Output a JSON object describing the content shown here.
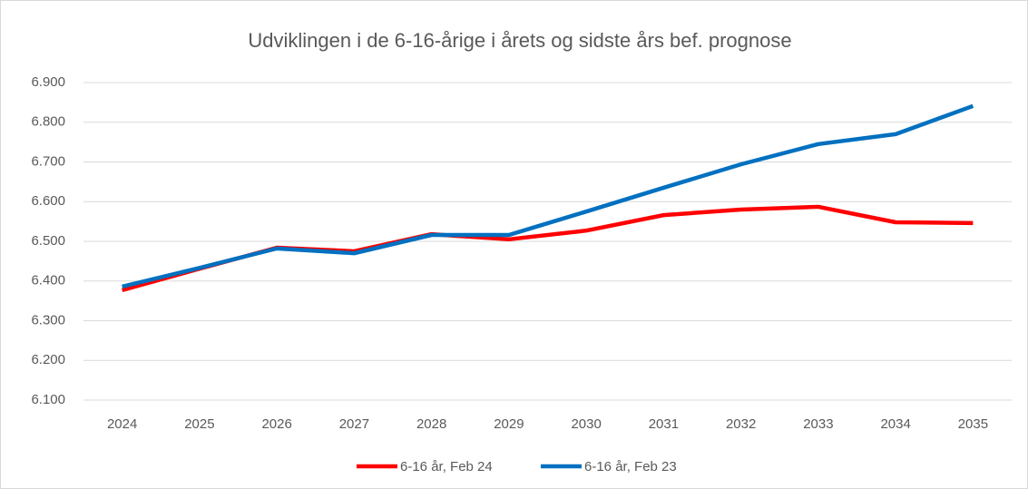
{
  "chart_data": {
    "type": "line",
    "title": "Udviklingen i de 6-16-årige i årets og sidste års bef. prognose",
    "categories": [
      "2024",
      "2025",
      "2026",
      "2027",
      "2028",
      "2029",
      "2030",
      "2031",
      "2032",
      "2033",
      "2034",
      "2035"
    ],
    "series": [
      {
        "name": "6-16 år, Feb 24",
        "color": "#ff0000",
        "values": [
          6377,
          6431,
          6484,
          6475,
          6518,
          6505,
          6527,
          6566,
          6580,
          6587,
          6548,
          6546
        ]
      },
      {
        "name": "6-16 år, Feb 23",
        "color": "#0070c0",
        "values": [
          6386,
          6433,
          6482,
          6470,
          6516,
          6516,
          6575,
          6635,
          6694,
          6745,
          6770,
          6841
        ]
      }
    ],
    "ylim": [
      6100,
      6900
    ],
    "yticks": [
      {
        "value": 6100,
        "label": "6.100"
      },
      {
        "value": 6200,
        "label": "6.200"
      },
      {
        "value": 6300,
        "label": "6.300"
      },
      {
        "value": 6400,
        "label": "6.400"
      },
      {
        "value": 6500,
        "label": "6.500"
      },
      {
        "value": 6600,
        "label": "6.600"
      },
      {
        "value": 6700,
        "label": "6.700"
      },
      {
        "value": 6800,
        "label": "6.800"
      },
      {
        "value": 6900,
        "label": "6.900"
      }
    ],
    "grid": true,
    "legend": "bottom"
  }
}
